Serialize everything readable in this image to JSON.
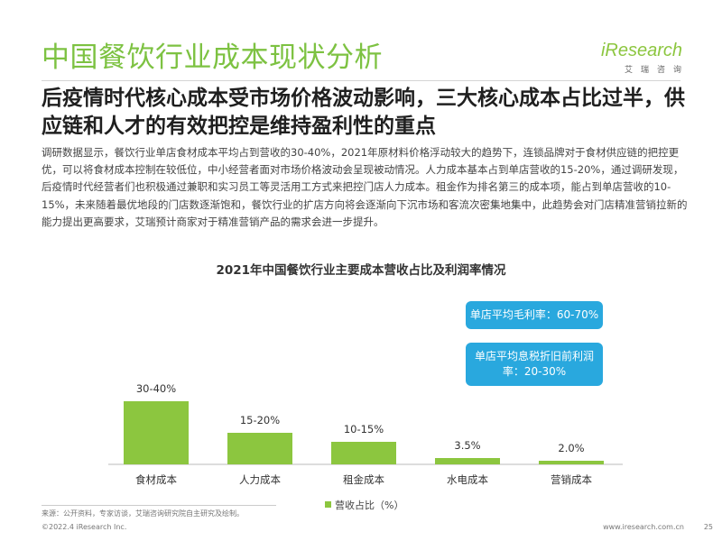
{
  "page": {
    "title": "中国餐饮行业成本现状分析",
    "subtitle": "后疫情时代核心成本受市场价格波动影响，三大核心成本占比过半，供应链和人才的有效把控是维持盈利性的重点",
    "body": "调研数据显示，餐饮行业单店食材成本平均占到营收的30-40%，2021年原材料价格浮动较大的趋势下，连锁品牌对于食材供应链的把控更优，可以将食材成本控制在较低位，中小经营者面对市场价格波动会呈现被动情况。人力成本基本占到单店营收的15-20%，通过调研发现，后疫情时代经营者们也积极通过兼职和实习员工等灵活用工方式来把控门店人力成本。租金作为排名第三的成本项，能占到单店营收的10-15%，未来随着最优地段的门店数逐渐饱和，餐饮行业的扩店方向将会逐渐向下沉市场和客流次密集地集中，此趋势会对门店精准营销拉新的能力提出更高要求，艾瑞预计商家对于精准营销产品的需求会进一步提升。"
  },
  "logo": {
    "brand": "iResearch",
    "sub": "艾瑞咨询"
  },
  "callouts": {
    "gross_margin": "单店平均毛利率：60-70%",
    "net_margin": "单店平均息税折旧前利润率：20-30%"
  },
  "footer": {
    "source": "来源：公开资料，专家访谈，艾瑞咨询研究院自主研究及绘制。",
    "copyright": "©2022.4 iResearch Inc.",
    "website": "www.iresearch.com.cn",
    "page_number": "25"
  },
  "colors": {
    "accent": "#7dc242",
    "bar": "#8cc63f",
    "callout": "#29a8de"
  },
  "chart_data": {
    "type": "bar",
    "title": "2021年中国餐饮行业主要成本营收占比及利润率情况",
    "categories": [
      "食材成本",
      "人力成本",
      "租金成本",
      "水电成本",
      "营销成本"
    ],
    "values": [
      35,
      17.5,
      12.5,
      3.5,
      2.0
    ],
    "labels": [
      "30-40%",
      "15-20%",
      "10-15%",
      "3.5%",
      "2.0%"
    ],
    "series": [
      {
        "name": "营收占比（%）",
        "values": [
          35,
          17.5,
          12.5,
          3.5,
          2.0
        ]
      }
    ],
    "ylim": [
      0,
      40
    ],
    "grid": false,
    "legend": "bottom-center"
  }
}
